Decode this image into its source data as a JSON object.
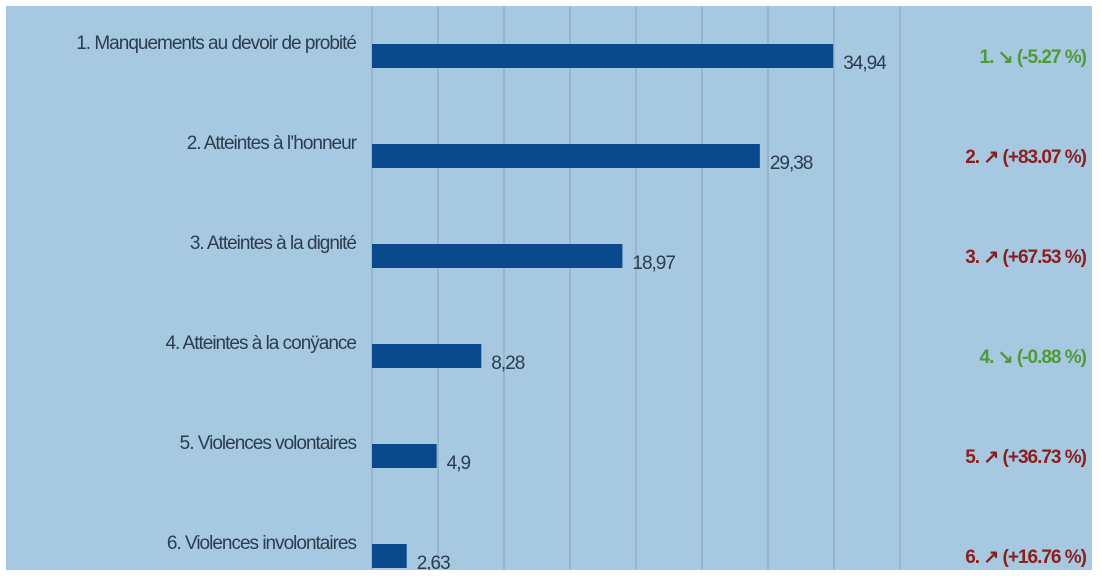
{
  "chart_data": {
    "type": "bar",
    "orientation": "horizontal",
    "categories": [
      "1. Manquements au devoir de probité",
      "2. Atteintes à l’honneur",
      "3. Atteintes à la dignité",
      "4. Atteintes à la conÿance",
      "5. Violences volontaires",
      "6. Violences involontaires"
    ],
    "values": [
      34.94,
      29.38,
      18.97,
      8.28,
      4.9,
      2.63
    ],
    "value_labels": [
      "34,94",
      "29,38",
      "18,97",
      "8,28",
      "4,9",
      "2,63"
    ],
    "changes": [
      {
        "text": "1. ↘ (-5.27 %)",
        "direction": "down",
        "color": "#4e9a3a"
      },
      {
        "text": "2. ↗ (+83.07 %)",
        "direction": "up",
        "color": "#8b1e1e"
      },
      {
        "text": "3. ↗ (+67.53 %)",
        "direction": "up",
        "color": "#8b1e1e"
      },
      {
        "text": "4. ↘ (-0.88 %)",
        "direction": "down",
        "color": "#4e9a3a"
      },
      {
        "text": "5. ↗ (+36.73 %)",
        "direction": "up",
        "color": "#8b1e1e"
      },
      {
        "text": "6. ↗ (+16.76 %)",
        "direction": "up",
        "color": "#8b1e1e"
      }
    ],
    "xlim": [
      0,
      40
    ],
    "gridlines": [
      0,
      5,
      10,
      15,
      20,
      25,
      30,
      35,
      40
    ],
    "grid": true,
    "title": "",
    "xlabel": "",
    "ylabel": ""
  },
  "colors": {
    "background": "#a6c8e0",
    "bar": "#0a4a8c",
    "grid": "#8fb0c8",
    "text": "#2b3d4f"
  }
}
